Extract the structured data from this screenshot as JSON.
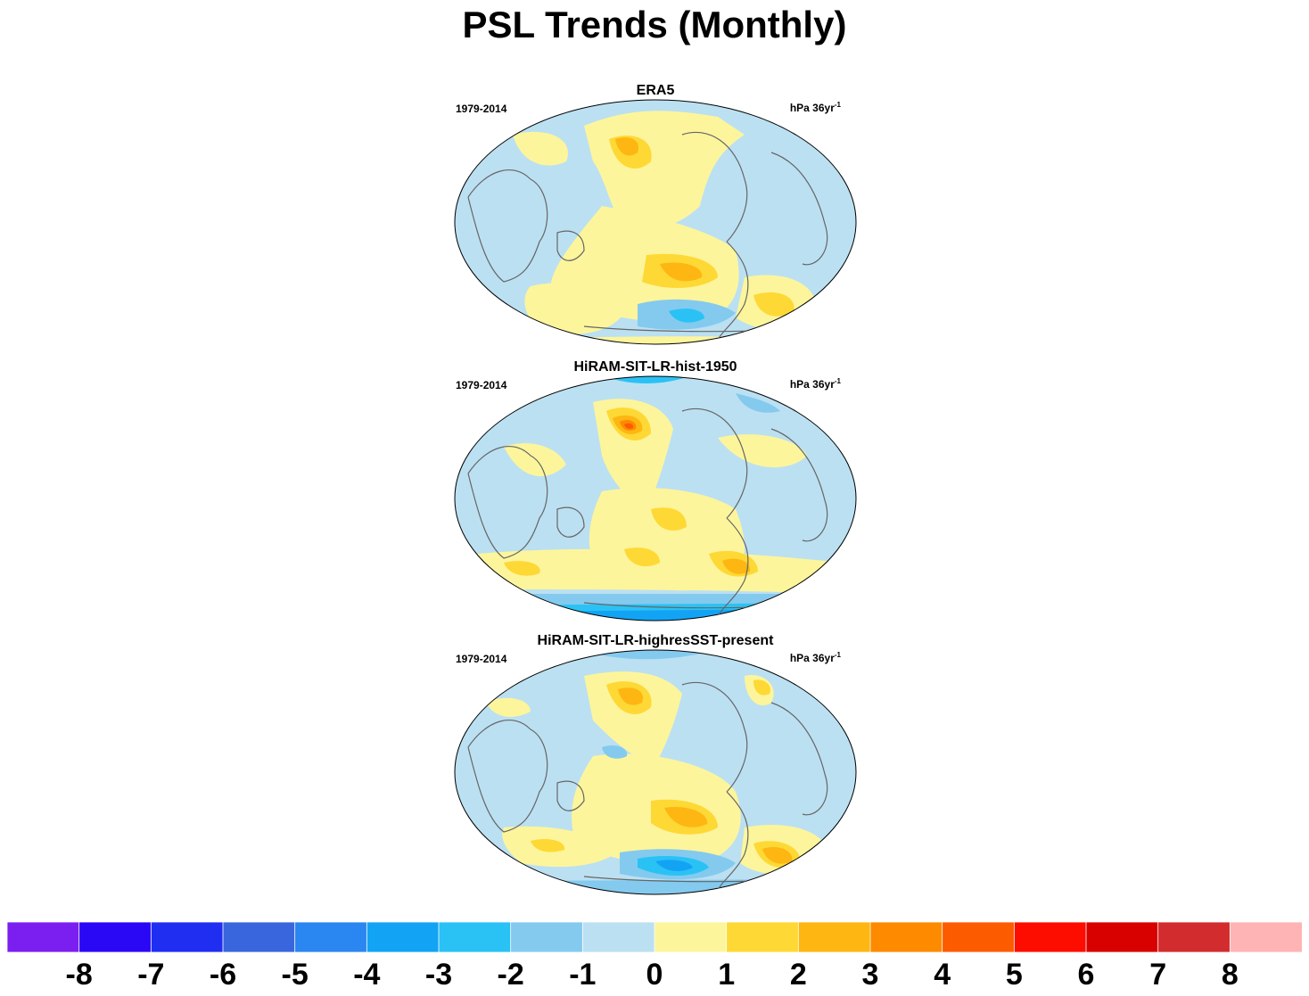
{
  "title": "PSL Trends (Monthly)",
  "panels": [
    {
      "name": "ERA5",
      "period": "1979-2014",
      "units_base": "hPa 36yr",
      "units_exp": "-1"
    },
    {
      "name": "HiRAM-SIT-LR-hist-1950",
      "period": "1979-2014",
      "units_base": "hPa 36yr",
      "units_exp": "-1"
    },
    {
      "name": "HiRAM-SIT-LR-highresSST-present",
      "period": "1979-2014",
      "units_base": "hPa 36yr",
      "units_exp": "-1"
    }
  ],
  "colorbar": {
    "colors": [
      "#7b1ff0",
      "#2a08f5",
      "#1f2ef0",
      "#3a66dd",
      "#2a86f0",
      "#12a3f5",
      "#2ac2f5",
      "#84caee",
      "#bbe0f2",
      "#fdf59c",
      "#fed834",
      "#fdb612",
      "#fe8a00",
      "#fd5b00",
      "#fd0d00",
      "#d90000",
      "#d22c2e",
      "#feb4b4"
    ],
    "labels": [
      "-8",
      "-7",
      "-6",
      "-5",
      "-4",
      "-3",
      "-2",
      "-1",
      "0",
      "1",
      "2",
      "3",
      "4",
      "5",
      "6",
      "7",
      "8"
    ]
  }
}
